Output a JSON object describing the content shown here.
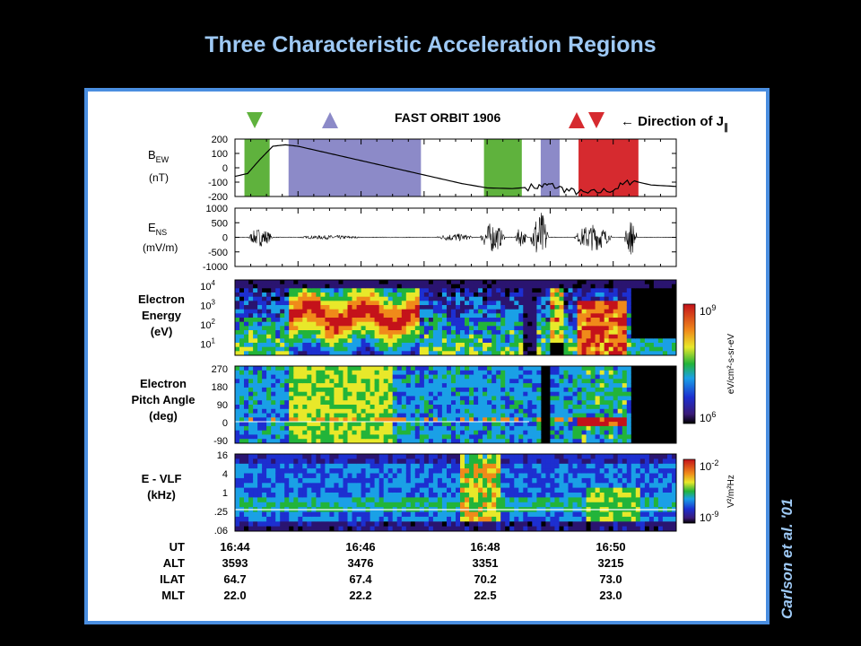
{
  "title": "Three Characteristic Acceleration Regions",
  "credit": "Carlson et al. '01",
  "colors": {
    "green": "#5fb23d",
    "purple": "#8c8ac8",
    "red": "#d62a2f",
    "frame": "#4a8ee0",
    "title": "#9ec9f5"
  },
  "header": {
    "orbit": "FAST ORBIT 1906",
    "direction_label": "← Direction of J",
    "direction_sub": "∥"
  },
  "region_arrows": [
    {
      "color": "green",
      "dir": "down"
    },
    {
      "color": "purple",
      "dir": "up"
    },
    {
      "color": "red",
      "dir": "up"
    },
    {
      "color": "red",
      "dir": "down"
    }
  ],
  "chart_data": [
    {
      "type": "line",
      "panel": "BEW",
      "ylabel_main": "B",
      "ylabel_sub": "EW",
      "units": "(nT)",
      "yticks": [
        "200",
        "100",
        "0",
        "-100",
        "-200"
      ],
      "ylim": [
        -200,
        200
      ],
      "xlim": [
        0,
        7
      ],
      "x": [
        0,
        0.2,
        0.4,
        0.6,
        0.8,
        1.0,
        1.3,
        1.6,
        2.0,
        2.4,
        2.8,
        3.2,
        3.6,
        4.0,
        4.4,
        4.8,
        5.0,
        5.3,
        5.6,
        6.0,
        6.3,
        6.6,
        7.0
      ],
      "y": [
        -60,
        -40,
        60,
        150,
        160,
        150,
        120,
        90,
        50,
        10,
        -30,
        -70,
        -110,
        -140,
        -145,
        -130,
        -120,
        -160,
        -180,
        -150,
        -90,
        -120,
        -130
      ],
      "shaded_regions": [
        {
          "color": "green",
          "start": 0.15,
          "end": 0.55
        },
        {
          "color": "purple",
          "start": 0.85,
          "end": 2.95
        },
        {
          "color": "green",
          "start": 3.95,
          "end": 4.55
        },
        {
          "color": "purple",
          "start": 4.85,
          "end": 5.15
        },
        {
          "color": "red",
          "start": 5.45,
          "end": 6.4
        }
      ]
    },
    {
      "type": "line",
      "panel": "ENS",
      "ylabel_main": "E",
      "ylabel_sub": "NS",
      "units": "(mV/m)",
      "yticks": [
        "1000",
        "500",
        "0",
        "-500",
        "-1000"
      ],
      "ylim": [
        -1000,
        1000
      ],
      "activity_bursts": [
        {
          "center": 0.4,
          "width": 0.4,
          "amp": 300
        },
        {
          "center": 1.5,
          "width": 1.0,
          "amp": 60
        },
        {
          "center": 3.5,
          "width": 0.6,
          "amp": 120
        },
        {
          "center": 4.1,
          "width": 0.4,
          "amp": 500
        },
        {
          "center": 4.55,
          "width": 0.2,
          "amp": 300
        },
        {
          "center": 4.85,
          "width": 0.3,
          "amp": 900
        },
        {
          "center": 5.7,
          "width": 0.6,
          "amp": 450
        },
        {
          "center": 6.3,
          "width": 0.2,
          "amp": 600
        }
      ]
    },
    {
      "type": "heatmap",
      "panel": "ElectronEnergy",
      "ylabel_lines": [
        "Electron",
        "Energy",
        "(eV)"
      ],
      "ytick_base": [
        "10",
        "10",
        "10",
        "10"
      ],
      "ytick_exp": [
        "4",
        "3",
        "2",
        "1"
      ],
      "colorbar": {
        "top_base": "10",
        "top_exp": "9",
        "bottom_base": "10",
        "bottom_exp": "6",
        "label": "eV/cm²-s-sr-eV"
      }
    },
    {
      "type": "heatmap",
      "panel": "PitchAngle",
      "ylabel_lines": [
        "Electron",
        "Pitch Angle",
        "(deg)"
      ],
      "yticks": [
        "270",
        "180",
        "90",
        "0",
        "-90"
      ]
    },
    {
      "type": "heatmap",
      "panel": "VLF",
      "ylabel_lines": [
        "E - VLF",
        "(kHz)"
      ],
      "yticks": [
        "16",
        "4",
        "1",
        ".25",
        ".06"
      ],
      "colorbar": {
        "top_base": "10",
        "top_exp": "-2",
        "bottom_base": "10",
        "bottom_exp": "-9",
        "label": "V²/m²Hz"
      }
    }
  ],
  "ephemeris": {
    "rows": [
      {
        "label": "UT",
        "values": [
          "16:44",
          "16:46",
          "16:48",
          "16:50"
        ]
      },
      {
        "label": "ALT",
        "values": [
          "3593",
          "3476",
          "3351",
          "3215"
        ]
      },
      {
        "label": "ILAT",
        "values": [
          "64.7",
          "67.4",
          "70.2",
          "73.0"
        ]
      },
      {
        "label": "MLT",
        "values": [
          "22.0",
          "22.2",
          "22.5",
          "23.0"
        ]
      }
    ]
  }
}
